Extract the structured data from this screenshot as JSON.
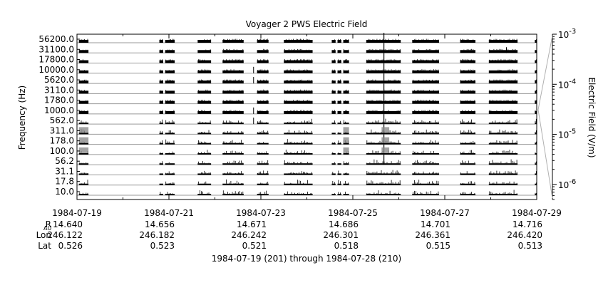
{
  "chart_data": {
    "type": "bar",
    "title": "Voyager 2 PWS Electric Field",
    "ylabel": "Frequency (Hz)",
    "colorbar_label": "Electric Field (V/m)",
    "channels": [
      "10.0",
      "17.8",
      "31.1",
      "56.2",
      "100.0",
      "178.0",
      "311.0",
      "562.0",
      "1000.0",
      "1780.0",
      "3110.0",
      "5620.0",
      "10000.0",
      "17800.0",
      "31100.0",
      "56200.0"
    ],
    "channel_ticks": [
      "10.0",
      "17.8",
      "31.1",
      "56.2",
      "100.0",
      "178.0",
      "311.0",
      "562.0",
      "1000.0",
      "1780.0",
      "3110.0",
      "5620.0",
      "10000.0",
      "17800.0",
      "31100.0",
      "56200.0"
    ],
    "xlim": [
      "1984-07-19",
      "1984-07-29"
    ],
    "x_ticks": [
      "1984-07-19",
      "1984-07-21",
      "1984-07-23",
      "1984-07-25",
      "1984-07-27",
      "1984-07-29"
    ],
    "colorbar": {
      "scale": "log",
      "range": [
        5e-07,
        0.001
      ],
      "tick_mantissa": "10",
      "tick_exponents": [
        "-3",
        "-4",
        "-5",
        "-6"
      ]
    },
    "data_segments": [
      [
        "1984-07-19 01:00",
        "1984-07-19 06:00"
      ],
      [
        "1984-07-20 19:00",
        "1984-07-20 21:00"
      ],
      [
        "1984-07-20 22:00",
        "1984-07-21 03:00"
      ],
      [
        "1984-07-21 15:00",
        "1984-07-21 22:00"
      ],
      [
        "1984-07-22 04:00",
        "1984-07-22 15:00"
      ],
      [
        "1984-07-22 22:00",
        "1984-07-23 04:00"
      ],
      [
        "1984-07-23 12:00",
        "1984-07-24 03:00"
      ],
      [
        "1984-07-24 13:00",
        "1984-07-24 15:00"
      ],
      [
        "1984-07-24 16:00",
        "1984-07-24 18:00"
      ],
      [
        "1984-07-24 19:00",
        "1984-07-24 22:00"
      ],
      [
        "1984-07-25 07:00",
        "1984-07-26 01:00"
      ],
      [
        "1984-07-26 07:00",
        "1984-07-26 21:00"
      ],
      [
        "1984-07-27 08:00",
        "1984-07-27 16:00"
      ],
      [
        "1984-07-27 23:00",
        "1984-07-28 14:00"
      ],
      [
        "1984-07-28 23:00",
        "1984-07-29 00:00"
      ]
    ],
    "ephemeris": {
      "labels": {
        "r": "R",
        "r_sub": "AU",
        "lon": "Lon",
        "lat": "Lat"
      },
      "r": [
        "14.640",
        "14.656",
        "14.671",
        "14.686",
        "14.701",
        "14.716"
      ],
      "lon": [
        "246.122",
        "246.182",
        "246.242",
        "246.301",
        "246.361",
        "246.420"
      ],
      "lat": [
        "0.526",
        "0.523",
        "0.521",
        "0.518",
        "0.515",
        "0.513"
      ]
    },
    "subtitle": "1984-07-19 (201) through 1984-07-28 (210)",
    "colors": {
      "trace": "#000000",
      "baseline": "#9a9a9a",
      "frame": "#000000"
    }
  }
}
